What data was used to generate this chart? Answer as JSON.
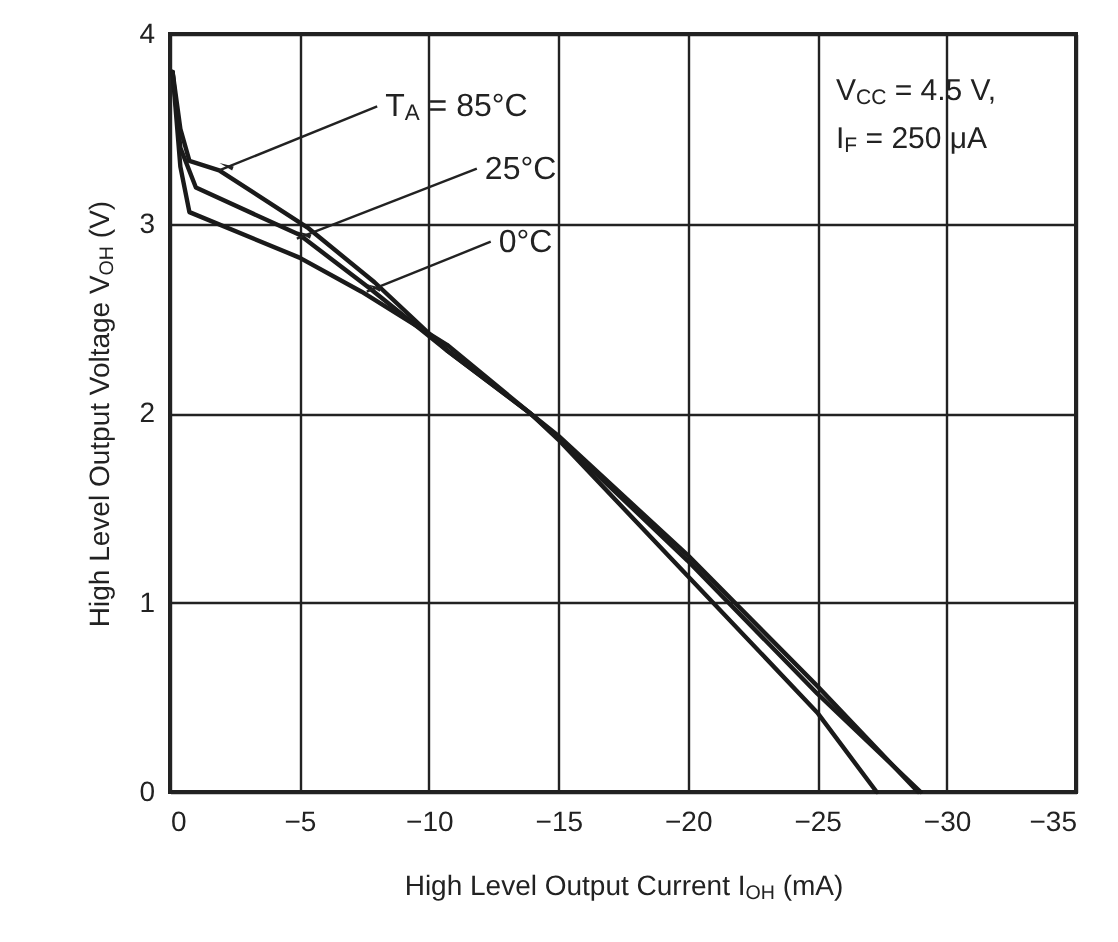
{
  "chart_data": {
    "type": "line",
    "xlabel": "High Level Output Current  I$_{OH}$ (mA)",
    "ylabel": "High Level Output Voltage  V$_{OH}$ (V)",
    "xlim": [
      0,
      -35
    ],
    "xticks": [
      0,
      -5,
      -10,
      -15,
      -20,
      -25,
      -30,
      -35
    ],
    "ylim": [
      0,
      4
    ],
    "yticks": [
      0,
      1,
      2,
      3,
      4
    ],
    "grid": true,
    "marker": "none",
    "line_style": "solid",
    "series": [
      {
        "color": "#1a1a1a",
        "x": [
          -0.1,
          -0.4,
          -0.75,
          -1.9,
          -5.3,
          -7.9,
          -10.7,
          -13.9,
          -15,
          -20,
          -25,
          -27.3
        ],
        "values": [
          3.8,
          3.5,
          3.33,
          3.28,
          2.98,
          2.69,
          2.33,
          2.0,
          1.86,
          1.14,
          0.42,
          0
        ]
      },
      {
        "color": "#1a1a1a",
        "x": [
          -0.1,
          -0.4,
          -1,
          -5,
          -7.7,
          -10.7,
          -13.9,
          -15,
          -20,
          -25,
          -28.9
        ],
        "values": [
          3.8,
          3.4,
          3.19,
          2.94,
          2.66,
          2.33,
          2.0,
          1.88,
          1.25,
          0.56,
          0
        ]
      },
      {
        "color": "#1a1a1a",
        "x": [
          -0.1,
          -0.4,
          -0.75,
          -5,
          -7.4,
          -10.7,
          -13.9,
          -15,
          -20,
          -25,
          -29
        ],
        "values": [
          3.8,
          3.3,
          3.06,
          2.82,
          2.64,
          2.36,
          2.0,
          1.87,
          1.22,
          0.52,
          0
        ]
      }
    ],
    "annotations": [
      {
        "text": "T$_{A}$ = 85°C",
        "x": -1.9,
        "y": 3.28
      },
      {
        "text": "25°C",
        "x": -4.9,
        "y": 2.92
      },
      {
        "text": "0°C",
        "x": -7.6,
        "y": 2.64
      },
      "V$_{CC}$ = 4.5 V,",
      "I$_{F}$ = 250 μA"
    ]
  }
}
